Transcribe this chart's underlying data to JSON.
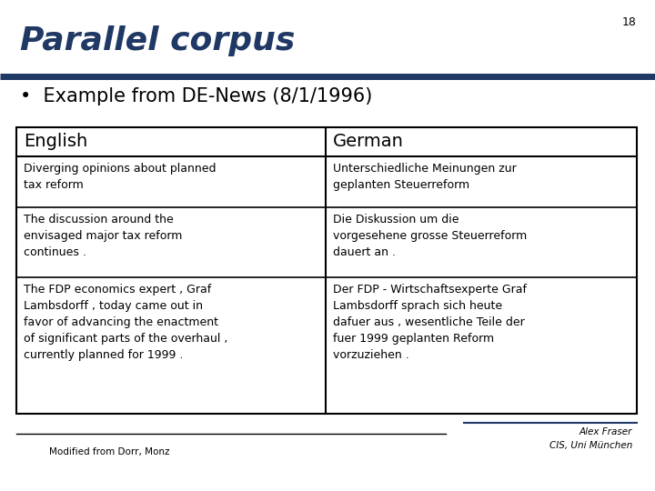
{
  "slide_number": "18",
  "title": "Parallel corpus",
  "title_color": "#1F3864",
  "bullet_text": "•  Example from DE-News (8/1/1996)",
  "table_headers": [
    "English",
    "German"
  ],
  "table_rows": [
    [
      "Diverging opinions about planned\ntax reform",
      "Unterschiedliche Meinungen zur\ngeplanten Steuerreform"
    ],
    [
      "The discussion around the\nenvisaged major tax reform\ncontinues .",
      "Die Diskussion um die\nvorgesehene grosse Steuerreform\ndauert an ."
    ],
    [
      "The FDP economics expert , Graf\nLambsdorff , today came out in\nfavor of advancing the enactment\nof significant parts of the overhaul ,\ncurrently planned for 1999 .",
      "Der FDP - Wirtschaftsexperte Graf\nLambsdorff sprach sich heute\ndafuer aus , wesentliche Teile der\nfuer 1999 geplanten Reform\nvorzuziehen ."
    ]
  ],
  "footer_left": "Modified from Dorr, Monz",
  "footer_right_line1": "Alex Fraser",
  "footer_right_line2": "CIS, Uni München",
  "bg_color": "#FFFFFF",
  "header_line_color": "#1F3864",
  "table_border_color": "#000000"
}
